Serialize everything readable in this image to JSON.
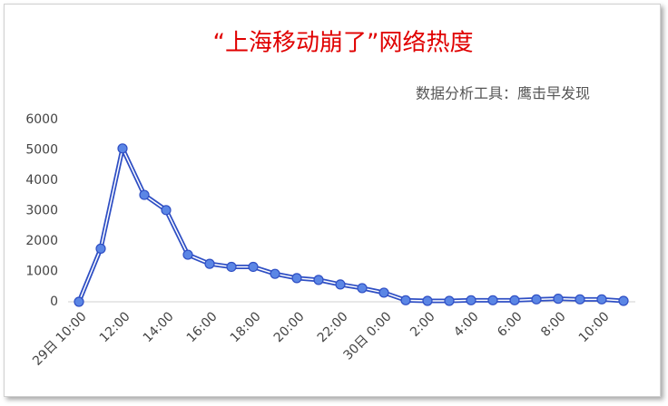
{
  "chart_data": {
    "type": "line",
    "title": "“上海移动崩了”网络热度",
    "subtitle": "数据分析工具：鹰击早发现",
    "categories": [
      "29日 10:00",
      null,
      "12:00",
      null,
      "14:00",
      null,
      "16:00",
      null,
      "18:00",
      null,
      "20:00",
      null,
      "22:00",
      null,
      "30日 0:00",
      null,
      "2:00",
      null,
      "4:00",
      null,
      "6:00",
      null,
      "8:00",
      null,
      "10:00",
      null
    ],
    "series": [
      {
        "color": "#2f4fc4",
        "values": [
          0,
          1750,
          5050,
          3520,
          3020,
          1550,
          1250,
          1150,
          1150,
          920,
          780,
          720,
          570,
          450,
          300,
          50,
          30,
          30,
          50,
          50,
          50,
          80,
          100,
          80,
          80,
          30
        ]
      }
    ],
    "ylim": [
      0,
      6000
    ],
    "yticks": [
      0,
      1000,
      2000,
      3000,
      4000,
      5000,
      6000
    ],
    "grid": false
  }
}
